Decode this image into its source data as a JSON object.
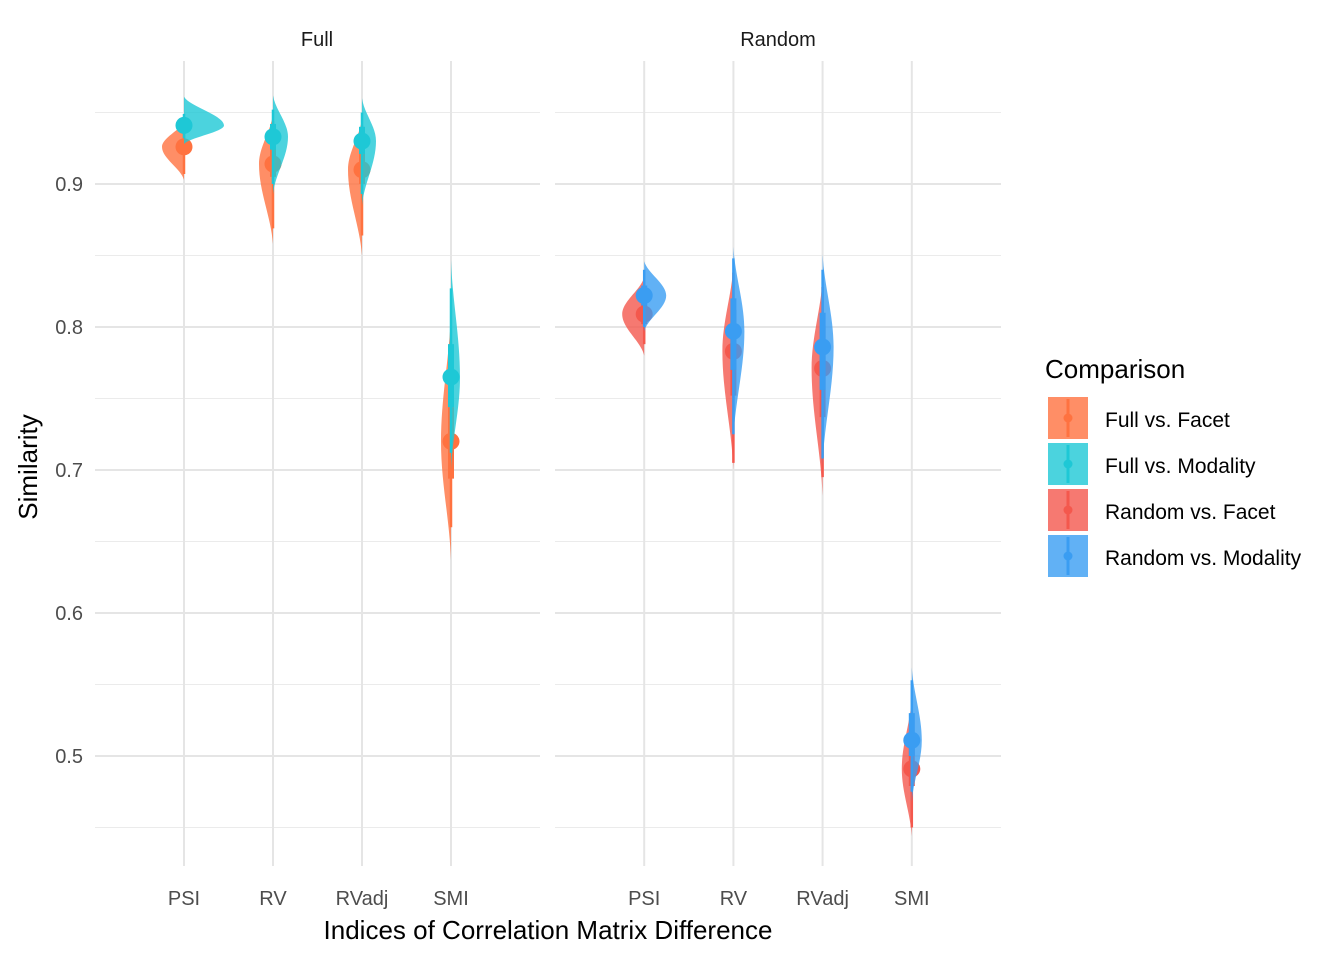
{
  "chart_data": {
    "type": "violin",
    "ylabel": "Similarity",
    "xlabel": "Indices of Correlation Matrix Difference",
    "categories": [
      "PSI",
      "RV",
      "RVadj",
      "SMI"
    ],
    "ylim": [
      0.43,
      0.97
    ],
    "yticks": [
      0.5,
      0.6,
      0.7,
      0.8,
      0.9
    ],
    "ytick_labels": [
      "0.5",
      "0.6",
      "0.7",
      "0.8",
      "0.9"
    ],
    "grid": true,
    "legend": {
      "title": "Comparison",
      "position": "right",
      "entries": [
        "Full vs. Facet",
        "Full vs. Modality",
        "Random vs. Facet",
        "Random vs. Modality"
      ]
    },
    "colors": {
      "Full vs. Facet": "#FF7240",
      "Full vs. Modality": "#1EC8D6",
      "Random vs. Facet": "#F4584D",
      "Random vs. Modality": "#3A9DF2"
    },
    "panels": [
      {
        "title": "Full",
        "series": [
          {
            "name": "Full vs. Facet",
            "side": "left",
            "points": [
              {
                "category": "PSI",
                "median": 0.926,
                "q1": 0.921,
                "q3": 0.931,
                "lo95": 0.907,
                "hi95": 0.941,
                "min": 0.903,
                "max": 0.944,
                "halfwidth": 22
              },
              {
                "category": "RV",
                "median": 0.914,
                "q1": 0.905,
                "q3": 0.927,
                "lo95": 0.869,
                "hi95": 0.944,
                "min": 0.858,
                "max": 0.949,
                "halfwidth": 14
              },
              {
                "category": "RVadj",
                "median": 0.91,
                "q1": 0.9,
                "q3": 0.924,
                "lo95": 0.864,
                "hi95": 0.941,
                "min": 0.85,
                "max": 0.946,
                "halfwidth": 14
              },
              {
                "category": "SMI",
                "median": 0.72,
                "q1": 0.694,
                "q3": 0.744,
                "lo95": 0.66,
                "hi95": 0.785,
                "min": 0.637,
                "max": 0.81,
                "halfwidth": 10
              }
            ]
          },
          {
            "name": "Full vs. Modality",
            "side": "right",
            "points": [
              {
                "category": "PSI",
                "median": 0.941,
                "q1": 0.938,
                "q3": 0.944,
                "lo95": 0.932,
                "hi95": 0.949,
                "min": 0.928,
                "max": 0.961,
                "halfwidth": 40
              },
              {
                "category": "RV",
                "median": 0.933,
                "q1": 0.924,
                "q3": 0.942,
                "lo95": 0.9,
                "hi95": 0.952,
                "min": 0.893,
                "max": 0.962,
                "halfwidth": 15
              },
              {
                "category": "RVadj",
                "median": 0.93,
                "q1": 0.921,
                "q3": 0.94,
                "lo95": 0.893,
                "hi95": 0.95,
                "min": 0.885,
                "max": 0.96,
                "halfwidth": 14
              },
              {
                "category": "SMI",
                "median": 0.765,
                "q1": 0.744,
                "q3": 0.788,
                "lo95": 0.712,
                "hi95": 0.827,
                "min": 0.7,
                "max": 0.847,
                "halfwidth": 9
              }
            ]
          }
        ]
      },
      {
        "title": "Random",
        "series": [
          {
            "name": "Random vs. Facet",
            "side": "left",
            "points": [
              {
                "category": "PSI",
                "median": 0.809,
                "q1": 0.802,
                "q3": 0.816,
                "lo95": 0.788,
                "hi95": 0.83,
                "min": 0.78,
                "max": 0.835,
                "halfwidth": 22
              },
              {
                "category": "RV",
                "median": 0.783,
                "q1": 0.752,
                "q3": 0.812,
                "lo95": 0.705,
                "hi95": 0.838,
                "min": 0.7,
                "max": 0.843,
                "halfwidth": 11
              },
              {
                "category": "RVadj",
                "median": 0.771,
                "q1": 0.737,
                "q3": 0.801,
                "lo95": 0.695,
                "hi95": 0.828,
                "min": 0.682,
                "max": 0.834,
                "halfwidth": 11
              },
              {
                "category": "SMI",
                "median": 0.491,
                "q1": 0.479,
                "q3": 0.506,
                "lo95": 0.45,
                "hi95": 0.53,
                "min": 0.444,
                "max": 0.54,
                "halfwidth": 10
              }
            ]
          },
          {
            "name": "Random vs. Modality",
            "side": "right",
            "points": [
              {
                "category": "PSI",
                "median": 0.822,
                "q1": 0.815,
                "q3": 0.829,
                "lo95": 0.8,
                "hi95": 0.84,
                "min": 0.797,
                "max": 0.846,
                "halfwidth": 22
              },
              {
                "category": "RV",
                "median": 0.797,
                "q1": 0.77,
                "q3": 0.82,
                "lo95": 0.725,
                "hi95": 0.848,
                "min": 0.722,
                "max": 0.856,
                "halfwidth": 11
              },
              {
                "category": "RVadj",
                "median": 0.786,
                "q1": 0.756,
                "q3": 0.81,
                "lo95": 0.708,
                "hi95": 0.84,
                "min": 0.704,
                "max": 0.851,
                "halfwidth": 11
              },
              {
                "category": "SMI",
                "median": 0.511,
                "q1": 0.5,
                "q3": 0.53,
                "lo95": 0.475,
                "hi95": 0.553,
                "min": 0.468,
                "max": 0.562,
                "halfwidth": 10
              }
            ]
          }
        ]
      }
    ]
  }
}
